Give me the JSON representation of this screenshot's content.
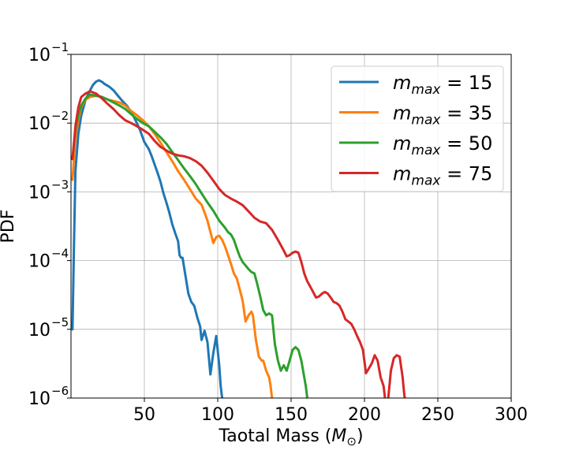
{
  "chart_data": {
    "type": "line",
    "title": "",
    "xlabel": "Taotal Mass (",
    "xlabel_symbol": "M",
    "xlabel_sub": "⊙",
    "xlabel_close": ")",
    "ylabel": "PDF",
    "xlim": [
      0,
      300
    ],
    "ylim": [
      1e-06,
      0.1
    ],
    "yscale": "log",
    "grid": true,
    "legend_position": "top-right",
    "x_ticks": [
      {
        "value": 50,
        "label": "50"
      },
      {
        "value": 100,
        "label": "100"
      },
      {
        "value": 150,
        "label": "150"
      },
      {
        "value": 200,
        "label": "200"
      },
      {
        "value": 250,
        "label": "250"
      },
      {
        "value": 300,
        "label": "300"
      }
    ],
    "y_ticks": [
      {
        "value": 1e-06,
        "base": "10",
        "exp": "−6"
      },
      {
        "value": 1e-05,
        "base": "10",
        "exp": "−5"
      },
      {
        "value": 0.0001,
        "base": "10",
        "exp": "−4"
      },
      {
        "value": 0.001,
        "base": "10",
        "exp": "−3"
      },
      {
        "value": 0.01,
        "base": "10",
        "exp": "−2"
      },
      {
        "value": 0.1,
        "base": "10",
        "exp": "−1"
      }
    ],
    "series": [
      {
        "name_sym": "m",
        "name_sub": "max",
        "name_val": " = 15",
        "color": "#1f77b4",
        "points": [
          [
            1,
            1e-05
          ],
          [
            2,
            0.00015
          ],
          [
            3,
            0.002
          ],
          [
            5,
            0.007
          ],
          [
            7,
            0.013
          ],
          [
            10,
            0.022
          ],
          [
            13,
            0.03
          ],
          [
            15,
            0.036
          ],
          [
            17,
            0.04
          ],
          [
            19,
            0.042
          ],
          [
            21,
            0.04
          ],
          [
            23,
            0.037
          ],
          [
            26,
            0.034
          ],
          [
            29,
            0.03
          ],
          [
            32,
            0.025
          ],
          [
            35,
            0.021
          ],
          [
            38,
            0.018
          ],
          [
            41,
            0.0145
          ],
          [
            44,
            0.011
          ],
          [
            47,
            0.008
          ],
          [
            50,
            0.0053
          ],
          [
            53,
            0.0042
          ],
          [
            55,
            0.0033
          ],
          [
            57,
            0.0025
          ],
          [
            59,
            0.0019
          ],
          [
            61,
            0.0014
          ],
          [
            63,
            0.00095
          ],
          [
            65,
            0.0007
          ],
          [
            67,
            0.0005
          ],
          [
            69,
            0.00034
          ],
          [
            71,
            0.00025
          ],
          [
            73,
            0.00019
          ],
          [
            74,
            0.00012
          ],
          [
            75,
            0.00011
          ],
          [
            76,
            0.00011
          ],
          [
            78,
            6e-05
          ],
          [
            80,
            3.3e-05
          ],
          [
            82,
            2.5e-05
          ],
          [
            84,
            2.2e-05
          ],
          [
            86,
            1.5e-05
          ],
          [
            88,
            1.1e-05
          ],
          [
            89,
            7e-06
          ],
          [
            91,
            9.5e-06
          ],
          [
            93,
            6.5e-06
          ],
          [
            95,
            2.2e-06
          ],
          [
            97,
            4.5e-06
          ],
          [
            99,
            8e-06
          ],
          [
            101,
            3e-06
          ],
          [
            102,
            1.5e-06
          ],
          [
            103,
            1e-06
          ]
        ]
      },
      {
        "name_sym": "m",
        "name_sub": "max",
        "name_val": " = 35",
        "color": "#ff7f0e",
        "points": [
          [
            1,
            0.0015
          ],
          [
            2,
            0.003
          ],
          [
            3,
            0.006
          ],
          [
            5,
            0.011
          ],
          [
            7,
            0.017
          ],
          [
            10,
            0.022
          ],
          [
            13,
            0.024
          ],
          [
            17,
            0.025
          ],
          [
            21,
            0.024
          ],
          [
            25,
            0.022
          ],
          [
            29,
            0.021
          ],
          [
            33,
            0.02
          ],
          [
            37,
            0.018
          ],
          [
            41,
            0.015
          ],
          [
            45,
            0.013
          ],
          [
            49,
            0.011
          ],
          [
            53,
            0.009
          ],
          [
            57,
            0.007
          ],
          [
            61,
            0.0052
          ],
          [
            65,
            0.0038
          ],
          [
            69,
            0.0028
          ],
          [
            73,
            0.002
          ],
          [
            77,
            0.0015
          ],
          [
            81,
            0.0011
          ],
          [
            85,
            0.0008
          ],
          [
            89,
            0.00065
          ],
          [
            91,
            0.0005
          ],
          [
            93,
            0.00038
          ],
          [
            95,
            0.00026
          ],
          [
            97,
            0.00018
          ],
          [
            99,
            0.00022
          ],
          [
            101,
            0.00023
          ],
          [
            103,
            0.0002
          ],
          [
            105,
            0.00016
          ],
          [
            107,
            0.00012
          ],
          [
            109,
            9e-05
          ],
          [
            111,
            6.5e-05
          ],
          [
            113,
            5.5e-05
          ],
          [
            115,
            3.8e-05
          ],
          [
            117,
            2.6e-05
          ],
          [
            119,
            1.3e-05
          ],
          [
            121,
            1.6e-05
          ],
          [
            123,
            1.8e-05
          ],
          [
            124,
            1.6e-05
          ],
          [
            126,
            7e-06
          ],
          [
            128,
            4e-06
          ],
          [
            130,
            3.5e-06
          ],
          [
            131,
            3.5e-06
          ],
          [
            133,
            2.5e-06
          ],
          [
            135,
            2e-06
          ],
          [
            136,
            1.5e-06
          ],
          [
            137,
            1e-06
          ]
        ]
      },
      {
        "name_sym": "m",
        "name_sub": "max",
        "name_val": " = 50",
        "color": "#2ca02c",
        "points": [
          [
            1,
            0.003
          ],
          [
            2,
            0.005
          ],
          [
            3,
            0.008
          ],
          [
            5,
            0.013
          ],
          [
            7,
            0.018
          ],
          [
            10,
            0.023
          ],
          [
            13,
            0.026
          ],
          [
            17,
            0.025
          ],
          [
            21,
            0.024
          ],
          [
            25,
            0.022
          ],
          [
            29,
            0.02
          ],
          [
            33,
            0.018
          ],
          [
            37,
            0.016
          ],
          [
            41,
            0.0135
          ],
          [
            45,
            0.0115
          ],
          [
            49,
            0.01
          ],
          [
            53,
            0.009
          ],
          [
            57,
            0.0075
          ],
          [
            61,
            0.0062
          ],
          [
            65,
            0.005
          ],
          [
            69,
            0.0038
          ],
          [
            73,
            0.0029
          ],
          [
            77,
            0.0022
          ],
          [
            81,
            0.0017
          ],
          [
            85,
            0.0013
          ],
          [
            89,
            0.00095
          ],
          [
            93,
            0.0007
          ],
          [
            97,
            0.00053
          ],
          [
            101,
            0.00038
          ],
          [
            105,
            0.0003
          ],
          [
            107,
            0.00026
          ],
          [
            109,
            0.00024
          ],
          [
            111,
            0.0002
          ],
          [
            113,
            0.00015
          ],
          [
            115,
            0.000115
          ],
          [
            117,
            9.5e-05
          ],
          [
            119,
            8.5e-05
          ],
          [
            121,
            7.5e-05
          ],
          [
            123,
            6.8e-05
          ],
          [
            125,
            6.5e-05
          ],
          [
            127,
            4.5e-05
          ],
          [
            129,
            3e-05
          ],
          [
            131,
            1.9e-05
          ],
          [
            133,
            1.6e-05
          ],
          [
            135,
            1.7e-05
          ],
          [
            137,
            1.6e-05
          ],
          [
            139,
            6e-06
          ],
          [
            141,
            3.5e-06
          ],
          [
            143,
            2.5e-06
          ],
          [
            145,
            3e-06
          ],
          [
            147,
            2.5e-06
          ],
          [
            149,
            3.5e-06
          ],
          [
            151,
            5e-06
          ],
          [
            153,
            5.5e-06
          ],
          [
            155,
            5e-06
          ],
          [
            157,
            3.5e-06
          ],
          [
            159,
            2e-06
          ],
          [
            160,
            1.5e-06
          ],
          [
            161,
            1e-06
          ]
        ]
      },
      {
        "name_sym": "m",
        "name_sub": "max",
        "name_val": " = 75",
        "color": "#d62728",
        "points": [
          [
            1,
            0.003
          ],
          [
            2,
            0.005
          ],
          [
            3,
            0.009
          ],
          [
            5,
            0.017
          ],
          [
            7,
            0.024
          ],
          [
            10,
            0.027
          ],
          [
            13,
            0.029
          ],
          [
            17,
            0.027
          ],
          [
            21,
            0.023
          ],
          [
            25,
            0.019
          ],
          [
            29,
            0.016
          ],
          [
            33,
            0.013
          ],
          [
            37,
            0.011
          ],
          [
            41,
            0.01
          ],
          [
            45,
            0.009
          ],
          [
            49,
            0.008
          ],
          [
            53,
            0.007
          ],
          [
            57,
            0.0055
          ],
          [
            61,
            0.0045
          ],
          [
            65,
            0.004
          ],
          [
            69,
            0.0036
          ],
          [
            73,
            0.0034
          ],
          [
            77,
            0.0033
          ],
          [
            81,
            0.0031
          ],
          [
            85,
            0.0028
          ],
          [
            89,
            0.0024
          ],
          [
            93,
            0.0019
          ],
          [
            97,
            0.00145
          ],
          [
            101,
            0.0011
          ],
          [
            105,
            0.0009
          ],
          [
            109,
            0.0008
          ],
          [
            113,
            0.00072
          ],
          [
            117,
            0.00064
          ],
          [
            121,
            0.00052
          ],
          [
            125,
            0.00042
          ],
          [
            129,
            0.00037
          ],
          [
            133,
            0.00035
          ],
          [
            137,
            0.00028
          ],
          [
            141,
            0.0002
          ],
          [
            145,
            0.00014
          ],
          [
            147,
            0.000115
          ],
          [
            149,
            0.00012
          ],
          [
            151,
            0.00013
          ],
          [
            153,
            0.000135
          ],
          [
            155,
            0.00013
          ],
          [
            157,
            9.5e-05
          ],
          [
            159,
            6.5e-05
          ],
          [
            161,
            5e-05
          ],
          [
            163,
            4.2e-05
          ],
          [
            165,
            3.5e-05
          ],
          [
            167,
            2.9e-05
          ],
          [
            169,
            3e-05
          ],
          [
            171,
            3.3e-05
          ],
          [
            173,
            3.5e-05
          ],
          [
            175,
            3.3e-05
          ],
          [
            177,
            2.9e-05
          ],
          [
            179,
            2.5e-05
          ],
          [
            181,
            2.4e-05
          ],
          [
            183,
            2.2e-05
          ],
          [
            185,
            1.8e-05
          ],
          [
            187,
            1.4e-05
          ],
          [
            189,
            1.3e-05
          ],
          [
            191,
            1.2e-05
          ],
          [
            193,
            1e-05
          ],
          [
            195,
            8e-06
          ],
          [
            197,
            6.5e-06
          ],
          [
            199,
            5e-06
          ],
          [
            201,
            2.3e-06
          ],
          [
            203,
            2.7e-06
          ],
          [
            205,
            3.2e-06
          ],
          [
            207,
            4.2e-06
          ],
          [
            209,
            3.5e-06
          ],
          [
            211,
            2e-06
          ],
          [
            213,
            1.5e-06
          ],
          [
            214,
            1e-06
          ],
          [
            215,
            7e-07
          ]
        ]
      }
    ],
    "series_extra_segments": [
      {
        "series": 3,
        "points": [
          [
            216,
            9e-07
          ],
          [
            218,
            2.5e-06
          ],
          [
            220,
            3.8e-06
          ],
          [
            222,
            4.2e-06
          ],
          [
            224,
            4e-06
          ],
          [
            226,
            2e-06
          ],
          [
            227,
            1.2e-06
          ],
          [
            228,
            8e-07
          ]
        ]
      }
    ]
  }
}
